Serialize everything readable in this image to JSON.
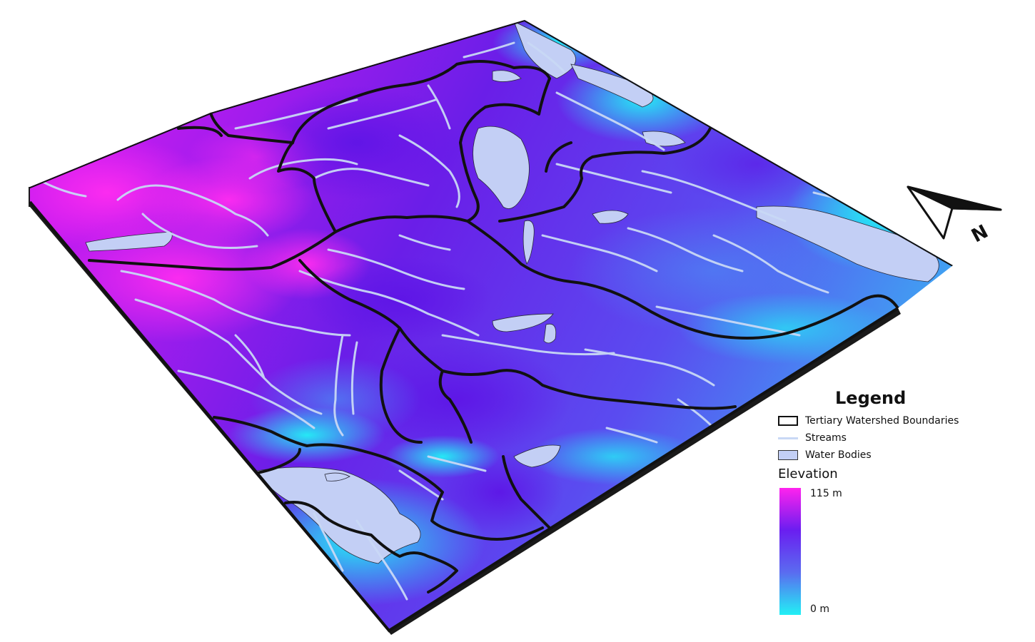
{
  "legend": {
    "title": "Legend",
    "items": [
      {
        "label": "Tertiary Watershed Boundaries",
        "symbol": "outline-box",
        "fill": "#ffffff",
        "stroke": "#111111"
      },
      {
        "label": "Streams",
        "symbol": "line",
        "stroke": "#c9d8f5"
      },
      {
        "label": "Water Bodies",
        "symbol": "filled-box",
        "fill": "#c3cff5",
        "stroke": "#333333"
      }
    ],
    "elevation": {
      "label": "Elevation",
      "max_label": "115 m",
      "min_label": "0 m",
      "colors": [
        "#ff22ee",
        "#6a1ef0",
        "#5a6cf0",
        "#22f0f5"
      ]
    }
  },
  "north_arrow": {
    "label": "N",
    "icon": "north-arrow-icon"
  },
  "colors": {
    "high": "#e017ec",
    "mid": "#5a21e6",
    "low": "#27e7f2",
    "water": "#c3cff5",
    "stream": "#c9d8f5",
    "boundary": "#111111"
  }
}
